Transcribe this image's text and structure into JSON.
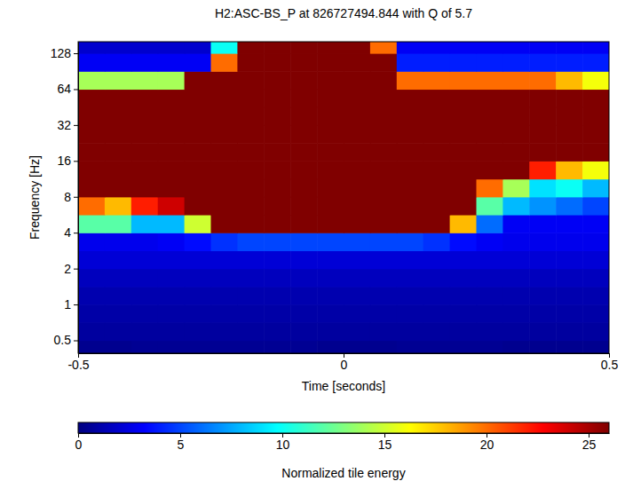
{
  "chart_data": {
    "type": "heatmap",
    "title": "H2:ASC-BS_P at 826727494.844 with Q of 5.7",
    "x_label": "Time [seconds]",
    "y_label": "Frequency [Hz]",
    "log": "y",
    "xlim": [
      -0.5,
      0.5
    ],
    "xticks": [
      -0.5,
      0,
      0.5
    ],
    "ylim": [
      0.39,
      160
    ],
    "yticks": [
      0.5,
      1,
      2,
      4,
      8,
      16,
      32,
      64,
      128
    ],
    "time_edges": [
      -0.5,
      -0.45,
      -0.4,
      -0.35,
      -0.3,
      -0.25,
      -0.2,
      -0.15,
      -0.1,
      -0.05,
      0,
      0.05,
      0.1,
      0.15,
      0.2,
      0.25,
      0.3,
      0.35,
      0.4,
      0.45,
      0.5
    ],
    "freq_edges": [
      0.39,
      0.5,
      0.71,
      1,
      1.41,
      2,
      2.83,
      4,
      5.66,
      8,
      11.3,
      16,
      22.6,
      32,
      45.3,
      64,
      90.5,
      128,
      160
    ],
    "cells": [
      [
        0.4,
        0.4,
        0.5,
        0.5,
        0.5,
        0.5,
        0.5,
        0.5,
        0.5,
        0.4,
        0.4,
        0.4,
        0.5,
        0.5,
        0.5,
        0.5,
        0.4,
        0.4,
        0.4,
        0.4
      ],
      [
        0.8,
        0.8,
        0.8,
        0.8,
        0.8,
        0.8,
        0.8,
        0.8,
        0.8,
        0.8,
        0.8,
        0.8,
        0.8,
        0.8,
        0.8,
        0.8,
        0.8,
        0.8,
        0.8,
        0.8
      ],
      [
        1.0,
        1.0,
        1.0,
        1.0,
        1.0,
        1.0,
        1.0,
        1.0,
        1.0,
        1.0,
        1.0,
        1.0,
        1.0,
        1.0,
        1.0,
        1.0,
        1.0,
        1.0,
        1.0,
        1.0
      ],
      [
        1.2,
        1.2,
        1.2,
        1.2,
        1.2,
        1.2,
        1.2,
        1.2,
        1.2,
        1.2,
        1.2,
        1.2,
        1.2,
        1.2,
        1.2,
        1.2,
        1.2,
        1.2,
        1.2,
        1.2
      ],
      [
        1.6,
        1.6,
        1.6,
        1.6,
        1.6,
        1.6,
        1.6,
        1.6,
        1.6,
        1.6,
        1.6,
        1.6,
        1.6,
        1.6,
        1.6,
        1.6,
        1.6,
        1.6,
        1.6,
        1.6
      ],
      [
        2.2,
        2.2,
        2.2,
        2.2,
        2.2,
        2.2,
        2.2,
        2.2,
        2.2,
        2.2,
        2.2,
        2.2,
        2.2,
        2.2,
        2.2,
        2.2,
        2.2,
        2.2,
        2.2,
        2.2
      ],
      [
        2.8,
        2.8,
        2.8,
        3,
        3.5,
        4.5,
        5,
        5,
        5,
        5,
        5,
        5,
        5,
        4.5,
        3.5,
        3,
        2.8,
        2.8,
        2.8,
        2.8
      ],
      [
        12,
        12,
        8,
        8,
        15,
        26,
        26,
        26,
        26,
        26,
        26,
        26,
        26,
        26,
        18,
        6,
        3,
        3,
        3,
        3
      ],
      [
        20,
        18,
        22,
        24,
        26,
        26,
        26,
        26,
        26,
        26,
        26,
        26,
        26,
        26,
        26,
        12,
        8,
        7,
        6,
        5
      ],
      [
        26,
        26,
        26,
        26,
        26,
        26,
        26,
        26,
        26,
        26,
        26,
        26,
        26,
        26,
        26,
        20,
        14,
        9,
        10,
        8
      ],
      [
        26,
        26,
        26,
        26,
        26,
        26,
        26,
        26,
        26,
        26,
        26,
        26,
        26,
        26,
        26,
        26,
        26,
        22,
        18,
        16
      ],
      [
        26,
        26,
        26,
        26,
        26,
        26,
        26,
        26,
        26,
        26,
        26,
        26,
        26,
        26,
        26,
        26,
        26,
        26,
        26,
        26
      ],
      [
        26,
        26,
        26,
        26,
        26,
        26,
        26,
        26,
        26,
        26,
        26,
        26,
        26,
        26,
        26,
        26,
        26,
        26,
        26,
        26
      ],
      [
        26,
        26,
        26,
        26,
        26,
        26,
        26,
        26,
        26,
        26,
        26,
        26,
        26,
        26,
        26,
        26,
        26,
        26,
        26,
        26
      ],
      [
        26,
        26,
        26,
        26,
        26,
        26,
        26,
        26,
        26,
        26,
        26,
        26,
        26,
        26,
        26,
        26,
        26,
        26,
        26,
        26
      ],
      [
        14,
        14,
        14,
        14,
        26,
        26,
        26,
        26,
        26,
        26,
        26,
        26,
        20,
        20,
        20,
        20,
        20,
        20,
        18,
        16
      ],
      [
        3,
        3,
        3,
        3,
        3,
        20,
        26,
        26,
        26,
        26,
        26,
        26,
        4,
        4,
        4,
        4,
        4,
        4,
        4,
        4
      ],
      [
        2,
        2,
        2,
        2,
        2,
        10,
        26,
        26,
        26,
        26,
        26,
        20,
        3,
        3,
        3,
        3,
        3,
        3,
        3,
        3
      ]
    ],
    "colorbar": {
      "label": "Normalized tile energy",
      "range": [
        0,
        26
      ],
      "ticks": [
        0,
        5,
        10,
        15,
        20,
        25
      ]
    }
  }
}
